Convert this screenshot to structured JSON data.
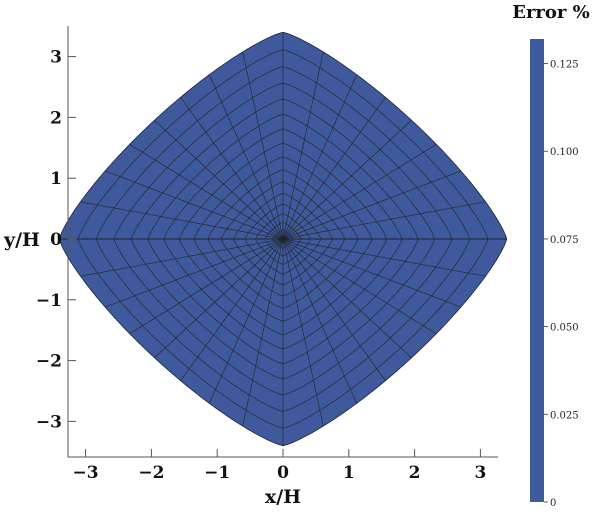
{
  "chart_data": {
    "type": "heatmap",
    "title": "",
    "xlabel": "x/H",
    "ylabel": "y/H",
    "xlim": [
      -3.2,
      3.2
    ],
    "ylim": [
      -3.4,
      3.4
    ],
    "x_ticks": [
      -3,
      -2,
      -1,
      0,
      1,
      2,
      3
    ],
    "y_ticks": [
      -3,
      -2,
      -1,
      0,
      1,
      2,
      3
    ],
    "x_tick_labels": [
      "−3",
      "−2",
      "−1",
      "0",
      "1",
      "2",
      "3"
    ],
    "y_tick_labels": [
      "−3",
      "−2",
      "−1",
      "0",
      "1",
      "2",
      "3"
    ],
    "field": {
      "shape": "rounded-diamond",
      "center": [
        0,
        0
      ],
      "extent_x": [
        -3.4,
        3.4
      ],
      "extent_y": [
        -3.4,
        3.4
      ],
      "value_percent": 0,
      "color": "#3e5a9c",
      "mesh_color": "#222222",
      "radial_lines": 32,
      "rings": 17
    },
    "colorbar": {
      "title": "Error %",
      "range": [
        0,
        0.132
      ],
      "ticks": [
        0,
        0.025,
        0.05,
        0.075,
        0.1,
        0.125
      ],
      "tick_labels": [
        "0",
        "0.025",
        "0.050",
        "0.075",
        "0.100",
        "0.125"
      ],
      "color": "#3e5a9c"
    },
    "grid": false,
    "legend": "right"
  }
}
